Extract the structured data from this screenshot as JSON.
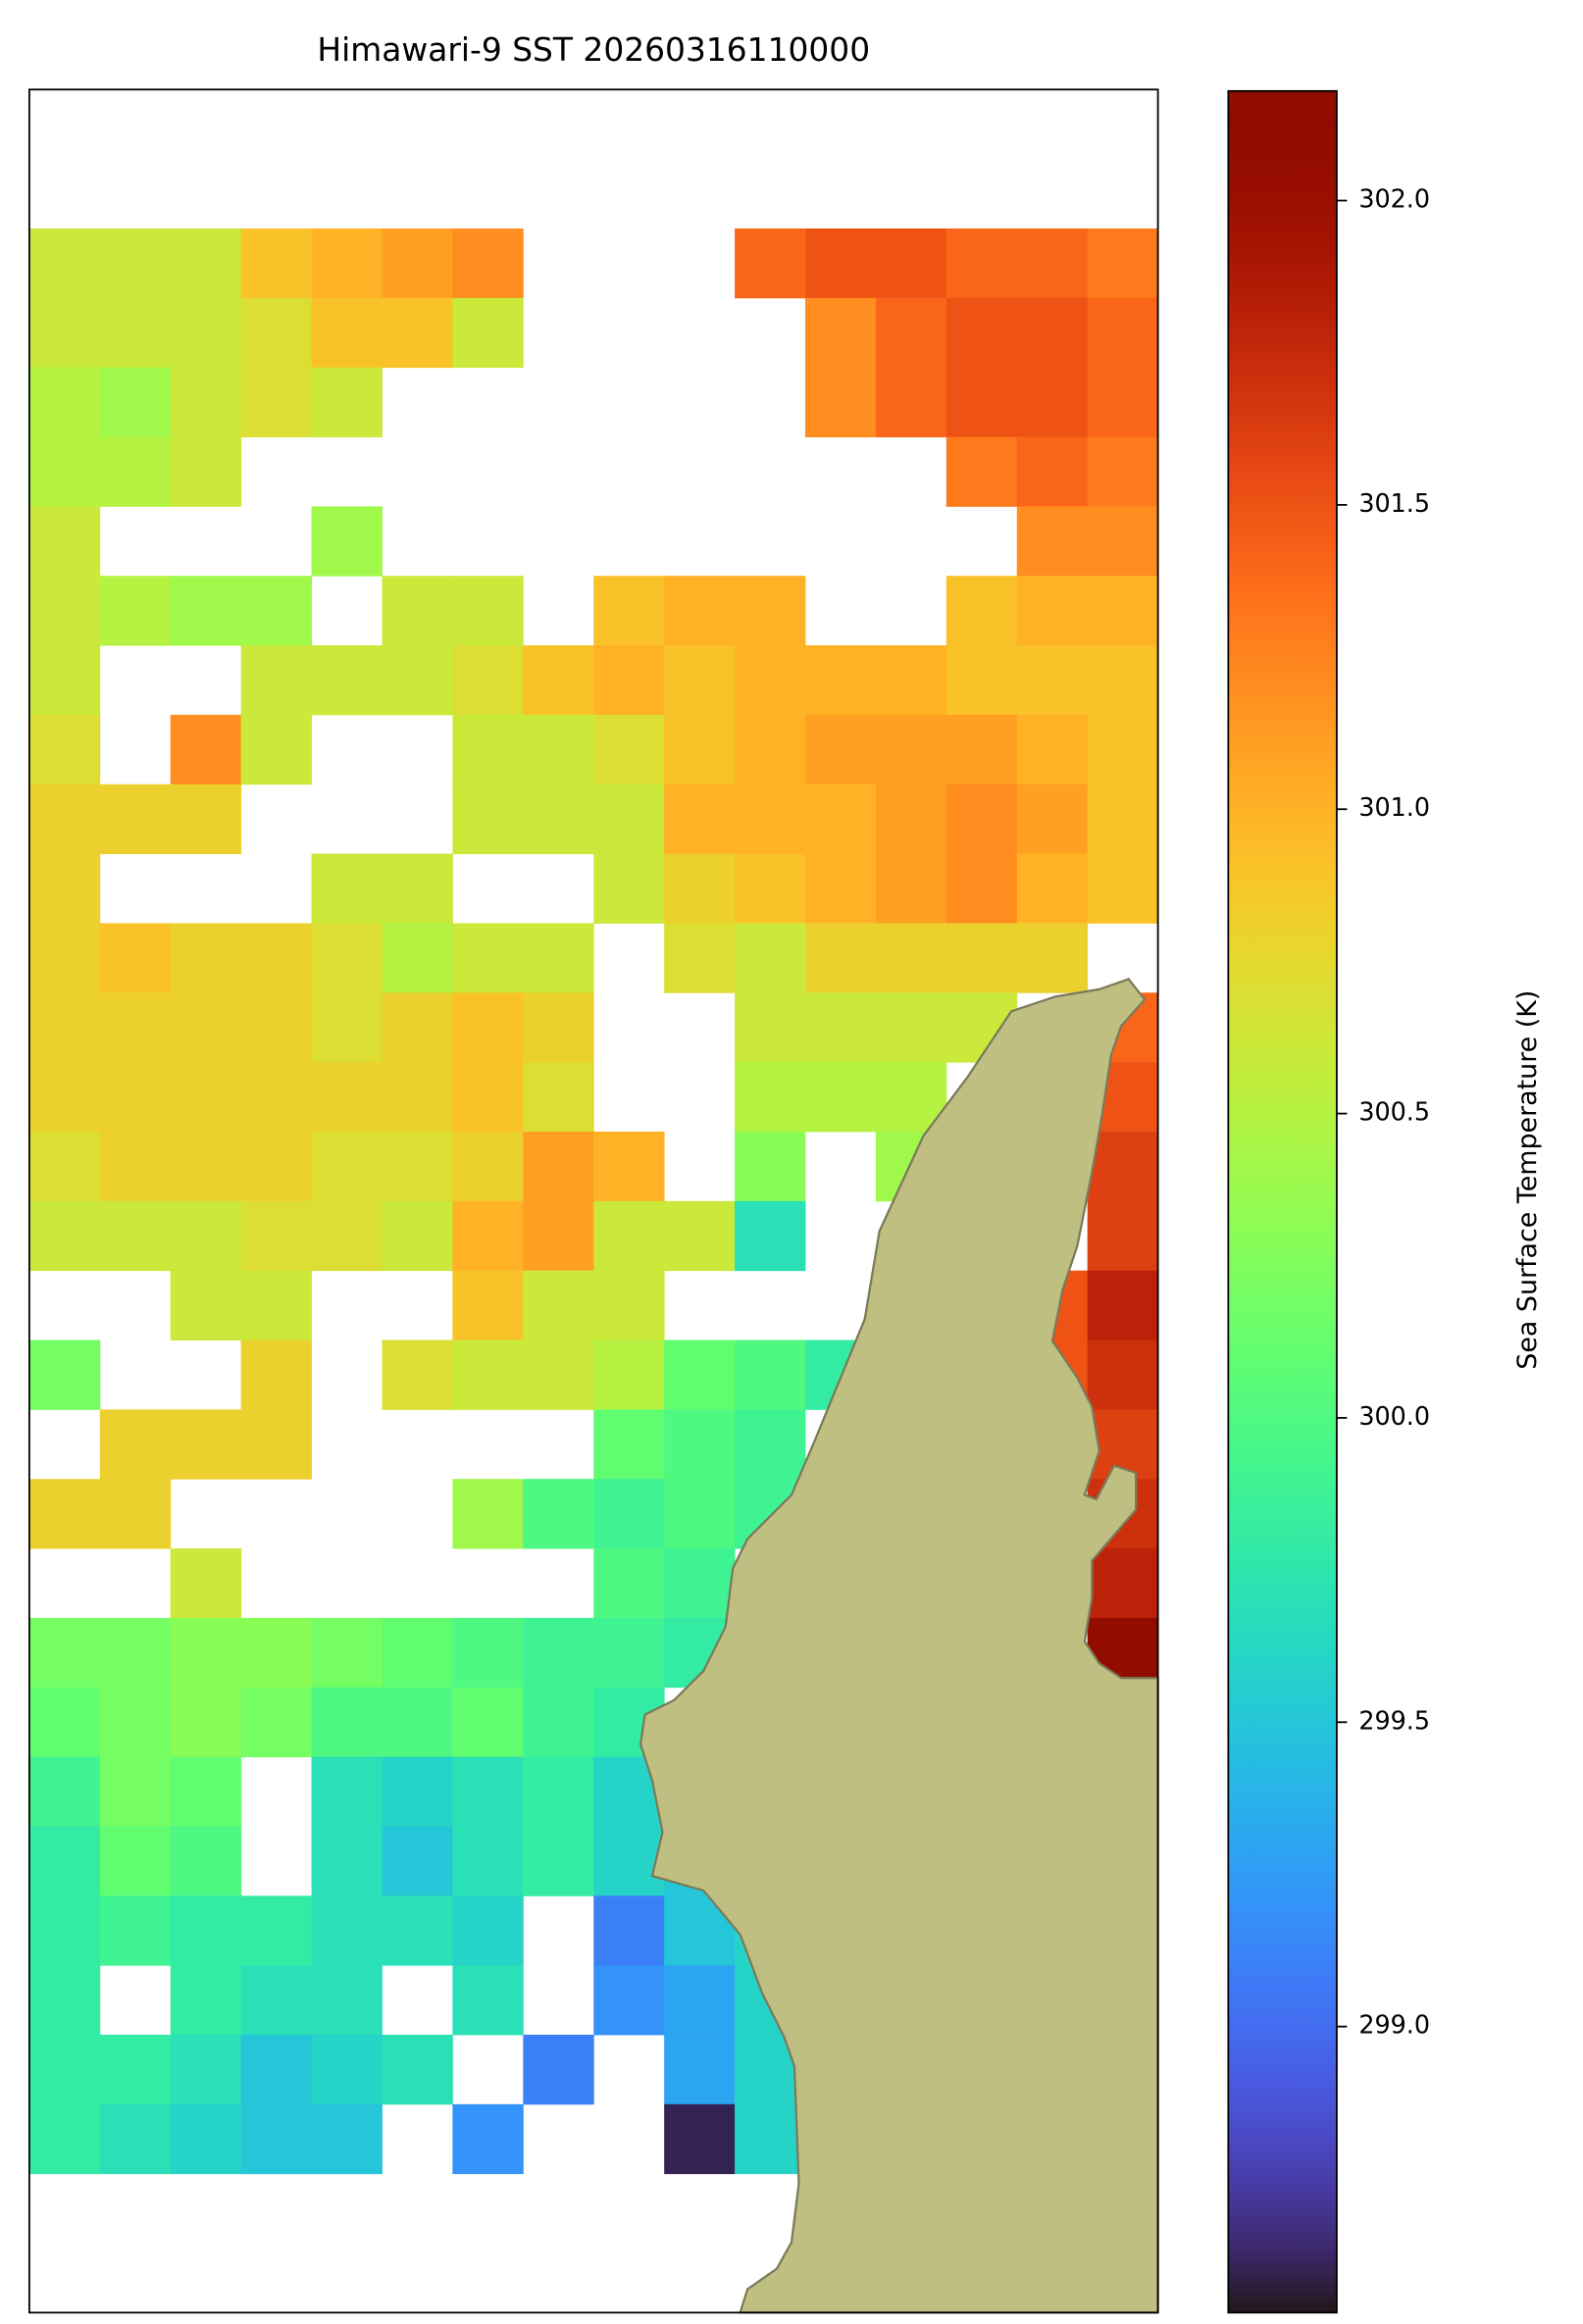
{
  "chart_data": {
    "type": "heatmap",
    "title": "Himawari-9 SST 20260316110000",
    "colormap": "turbo",
    "land_color": "#bfbf82",
    "colorbar": {
      "label": "Sea Surface Temperature (K)",
      "clim": [
        298.53,
        302.18
      ],
      "ticks": [
        {
          "value": 299,
          "label": "299.0"
        },
        299.5,
        {
          "value": 300,
          "label": "300.0"
        },
        300.5,
        {
          "value": 301,
          "label": "301.0"
        },
        301.5,
        {
          "value": 302,
          "label": "302.0"
        }
      ]
    },
    "values": [
      [
        null,
        null,
        null,
        null,
        null,
        null,
        null,
        null,
        null,
        null,
        null,
        null,
        null,
        null,
        null,
        null
      ],
      [
        null,
        null,
        null,
        null,
        null,
        null,
        null,
        null,
        null,
        null,
        null,
        null,
        null,
        null,
        null,
        null
      ],
      [
        300.6,
        300.6,
        300.6,
        300.9,
        301.0,
        301.1,
        301.2,
        null,
        null,
        null,
        301.4,
        301.5,
        301.5,
        301.4,
        301.4,
        301.3
      ],
      [
        300.6,
        300.6,
        300.6,
        300.7,
        300.9,
        300.9,
        300.6,
        null,
        null,
        null,
        null,
        301.2,
        301.4,
        301.5,
        301.5,
        301.4
      ],
      [
        300.5,
        300.4,
        300.6,
        300.7,
        300.6,
        null,
        null,
        null,
        null,
        null,
        null,
        301.2,
        301.4,
        301.5,
        301.5,
        301.4
      ],
      [
        300.5,
        300.5,
        300.6,
        null,
        null,
        null,
        null,
        null,
        null,
        null,
        null,
        null,
        null,
        301.3,
        301.4,
        301.3
      ],
      [
        300.6,
        null,
        null,
        null,
        300.4,
        null,
        null,
        null,
        null,
        null,
        null,
        null,
        null,
        null,
        301.2,
        301.2
      ],
      [
        300.6,
        300.5,
        300.4,
        300.4,
        null,
        300.6,
        300.6,
        null,
        300.9,
        301.0,
        301.0,
        null,
        null,
        300.9,
        301.0,
        301.0
      ],
      [
        300.6,
        null,
        null,
        300.6,
        300.6,
        300.6,
        300.7,
        300.9,
        301.0,
        300.9,
        301.0,
        301.0,
        301.0,
        300.9,
        300.9,
        300.9
      ],
      [
        300.7,
        null,
        301.2,
        300.6,
        null,
        null,
        300.6,
        300.6,
        300.7,
        300.9,
        301.0,
        301.1,
        301.1,
        301.1,
        301.0,
        300.9
      ],
      [
        300.8,
        300.8,
        300.8,
        null,
        null,
        null,
        300.6,
        300.6,
        300.6,
        301.0,
        301.0,
        301.0,
        301.1,
        301.2,
        301.1,
        300.9
      ],
      [
        300.8,
        null,
        null,
        null,
        300.6,
        300.6,
        null,
        null,
        300.6,
        300.8,
        300.9,
        301.0,
        301.1,
        301.2,
        301.0,
        300.9
      ],
      [
        300.8,
        300.9,
        300.8,
        300.8,
        300.7,
        300.5,
        300.6,
        300.6,
        null,
        300.7,
        300.6,
        300.8,
        300.8,
        300.8,
        300.8,
        null
      ],
      [
        300.8,
        300.8,
        300.8,
        300.8,
        300.7,
        300.8,
        300.9,
        300.8,
        null,
        null,
        300.6,
        300.6,
        300.6,
        300.6,
        null,
        301.4
      ],
      [
        300.8,
        300.8,
        300.8,
        300.8,
        300.8,
        300.8,
        300.9,
        300.7,
        null,
        null,
        300.5,
        300.5,
        300.5,
        null,
        null,
        301.5
      ],
      [
        300.7,
        300.8,
        300.8,
        300.8,
        300.7,
        300.7,
        300.8,
        301.1,
        301.0,
        null,
        300.3,
        null,
        300.4,
        null,
        null,
        301.6
      ],
      [
        300.6,
        300.6,
        300.6,
        300.7,
        300.7,
        300.6,
        301.0,
        301.1,
        300.6,
        300.6,
        299.7,
        null,
        null,
        null,
        null,
        301.6
      ],
      [
        null,
        null,
        300.6,
        300.6,
        null,
        null,
        300.9,
        300.6,
        300.6,
        null,
        null,
        null,
        null,
        null,
        301.5,
        301.8
      ],
      [
        300.2,
        null,
        null,
        300.8,
        null,
        300.7,
        300.6,
        300.6,
        300.5,
        300.1,
        300.0,
        299.8,
        null,
        null,
        301.5,
        301.7
      ],
      [
        null,
        300.8,
        300.8,
        300.8,
        null,
        null,
        null,
        null,
        300.1,
        300.0,
        299.9,
        null,
        null,
        null,
        null,
        301.6
      ],
      [
        300.8,
        300.8,
        null,
        null,
        null,
        null,
        300.4,
        300.0,
        299.9,
        300.0,
        299.9,
        null,
        null,
        null,
        null,
        301.7
      ],
      [
        null,
        null,
        300.6,
        null,
        null,
        null,
        null,
        null,
        300.0,
        299.9,
        null,
        null,
        null,
        null,
        null,
        301.8
      ],
      [
        300.2,
        300.2,
        300.3,
        300.3,
        300.2,
        300.1,
        300.0,
        299.9,
        299.9,
        299.8,
        null,
        null,
        null,
        null,
        null,
        302.1
      ],
      [
        300.1,
        300.2,
        300.3,
        300.2,
        300.0,
        300.0,
        300.1,
        299.9,
        299.8,
        null,
        null,
        null,
        null,
        null,
        null,
        null
      ],
      [
        299.9,
        300.2,
        300.1,
        null,
        299.7,
        299.6,
        299.7,
        299.8,
        299.6,
        null,
        null,
        null,
        null,
        null,
        null,
        null
      ],
      [
        299.8,
        300.1,
        300.0,
        null,
        299.7,
        299.5,
        299.7,
        299.8,
        299.6,
        299.5,
        null,
        null,
        null,
        null,
        null,
        null
      ],
      [
        299.8,
        299.9,
        299.8,
        299.8,
        299.7,
        299.7,
        299.6,
        null,
        299.1,
        299.5,
        299.6,
        null,
        null,
        null,
        null,
        null
      ],
      [
        299.8,
        null,
        299.8,
        299.7,
        299.7,
        null,
        299.7,
        null,
        299.2,
        299.3,
        299.6,
        null,
        null,
        null,
        null,
        null
      ],
      [
        299.8,
        299.8,
        299.7,
        299.5,
        299.6,
        299.7,
        null,
        299.1,
        null,
        299.3,
        299.6,
        null,
        null,
        null,
        null,
        null
      ],
      [
        299.8,
        299.7,
        299.6,
        299.5,
        299.5,
        null,
        299.2,
        null,
        null,
        298.6,
        299.6,
        null,
        null,
        null,
        null,
        null
      ],
      [
        null,
        null,
        null,
        null,
        null,
        null,
        null,
        null,
        null,
        null,
        null,
        null,
        null,
        null,
        null,
        null
      ],
      [
        null,
        null,
        null,
        null,
        null,
        null,
        null,
        null,
        null,
        null,
        null,
        null,
        null,
        null,
        null,
        null
      ]
    ]
  }
}
